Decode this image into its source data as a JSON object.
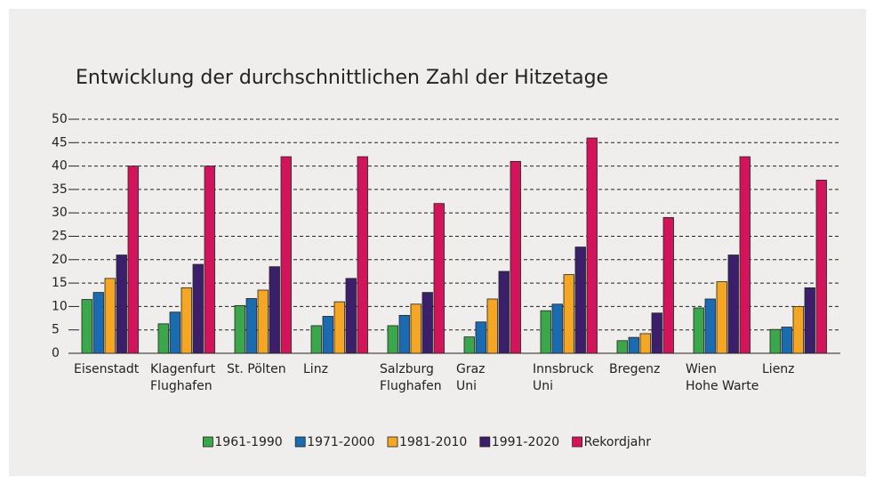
{
  "chart_data": {
    "type": "bar",
    "title": "Entwicklung der durchschnittlichen Zahl der Hitzetage",
    "categories": [
      "Eisenstadt",
      "Klagenfurt\nFlughafen",
      "St. Pölten",
      "Linz",
      "Salzburg\nFlughafen",
      "Graz\nUni",
      "Innsbruck\nUni",
      "Bregenz",
      "Wien\nHohe Warte",
      "Lienz"
    ],
    "series": [
      {
        "name": "1961-1990",
        "color": "#3aa84a",
        "values": [
          11.5,
          6.3,
          10.2,
          5.9,
          5.9,
          3.5,
          9.1,
          2.7,
          9.7,
          5.1
        ]
      },
      {
        "name": "1971-2000",
        "color": "#1b6bb0",
        "values": [
          13,
          8.8,
          11.7,
          7.9,
          8.1,
          6.7,
          10.5,
          3.4,
          11.6,
          5.6
        ]
      },
      {
        "name": "1981-2010",
        "color": "#f5a623",
        "values": [
          16,
          14,
          13.5,
          11,
          10.5,
          11.6,
          16.8,
          4.2,
          15.3,
          10
        ]
      },
      {
        "name": "1991-2020",
        "color": "#3b1f6b",
        "values": [
          21,
          19,
          18.5,
          16,
          13,
          17.5,
          22.7,
          8.6,
          21,
          14
        ]
      },
      {
        "name": "Rekordjahr",
        "color": "#d4145a",
        "values": [
          40,
          40,
          42,
          42,
          32,
          41,
          46,
          29,
          42,
          37
        ]
      }
    ],
    "ylim": [
      0,
      50
    ],
    "yticks": [
      0,
      5,
      10,
      15,
      20,
      25,
      30,
      35,
      40,
      45,
      50
    ],
    "grid": true,
    "legend": "bottom"
  }
}
